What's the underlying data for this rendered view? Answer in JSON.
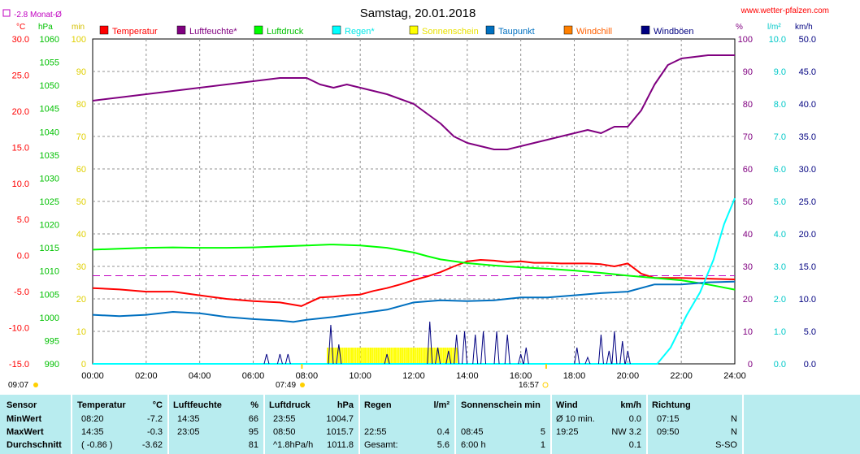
{
  "header": {
    "title": "Samstag, 20.01.2018",
    "site": "www.wetter-pfalzen.com",
    "month_avg": "-2.8 Monat-Ø"
  },
  "units": {
    "temp": "°C",
    "press": "hPa",
    "min": "min",
    "pct": "%",
    "rain": "l/m²",
    "wind": "km/h"
  },
  "legend": [
    {
      "label": "Temperatur",
      "color": "#ff0000"
    },
    {
      "label": "Luftfeuchte*",
      "color": "#800080"
    },
    {
      "label": "Luftdruck",
      "color": "#00ff00"
    },
    {
      "label": "Regen*",
      "color": "#00ffff"
    },
    {
      "label": "Sonnenschein",
      "color": "#ffff00"
    },
    {
      "label": "Taupunkt",
      "color": "#0070c0"
    },
    {
      "label": "Windchill",
      "color": "#ff8000"
    },
    {
      "label": "Windböen",
      "color": "#000080"
    }
  ],
  "axes": {
    "temp_ticks": [
      "30.0",
      "25.0",
      "20.0",
      "15.0",
      "10.0",
      "5.0",
      "0.0",
      "-5.0",
      "-10.0",
      "-15.0"
    ],
    "press_ticks": [
      "1060",
      "1055",
      "1050",
      "1045",
      "1040",
      "1035",
      "1030",
      "1025",
      "1020",
      "1015",
      "1010",
      "1005",
      "1000",
      "995",
      "990"
    ],
    "min_ticks": [
      "100",
      "90",
      "80",
      "70",
      "60",
      "50",
      "40",
      "30",
      "20",
      "10",
      "0"
    ],
    "pct_ticks": [
      "100",
      "90",
      "80",
      "70",
      "60",
      "50",
      "40",
      "30",
      "20",
      "10",
      "0"
    ],
    "rain_ticks": [
      "10.0",
      "9.0",
      "8.0",
      "7.0",
      "6.0",
      "5.0",
      "4.0",
      "3.0",
      "2.0",
      "1.0",
      "0.0"
    ],
    "wind_ticks": [
      "50.0",
      "45.0",
      "40.0",
      "35.0",
      "30.0",
      "25.0",
      "20.0",
      "15.0",
      "10.0",
      "5.0",
      "0.0"
    ],
    "time_ticks": [
      "00:00",
      "02:00",
      "04:00",
      "06:00",
      "08:00",
      "10:00",
      "12:00",
      "14:00",
      "16:00",
      "18:00",
      "20:00",
      "22:00",
      "24:00"
    ],
    "sunrise": "07:49",
    "sunset": "16:57",
    "moon": "09:07"
  },
  "chart_data": {
    "type": "line",
    "title": "Samstag, 20.01.2018",
    "x_range": [
      0,
      24
    ],
    "temp_range": [
      -15,
      30
    ],
    "press_range": [
      990,
      1060
    ],
    "pct_range": [
      0,
      100
    ],
    "rain_range": [
      0,
      10
    ],
    "month_avg_temp": -2.8,
    "series": [
      {
        "name": "Temperatur",
        "color": "#ff0000",
        "axis": "temp",
        "x": [
          0,
          1,
          2,
          3,
          4,
          5,
          6,
          7,
          7.8,
          8.5,
          9,
          9.5,
          10,
          10.5,
          11,
          11.5,
          12,
          12.5,
          13,
          13.5,
          14,
          14.5,
          15,
          15.5,
          16,
          16.5,
          17,
          17.5,
          18,
          18.5,
          19,
          19.5,
          20,
          20.5,
          21,
          22,
          23,
          24
        ],
        "y": [
          -4.5,
          -4.7,
          -5.0,
          -5.0,
          -5.5,
          -6.0,
          -6.3,
          -6.5,
          -7.0,
          -5.8,
          -5.7,
          -5.5,
          -5.4,
          -4.9,
          -4.5,
          -4.0,
          -3.4,
          -2.9,
          -2.3,
          -1.5,
          -0.8,
          -0.6,
          -0.7,
          -0.9,
          -0.8,
          -1.0,
          -1.0,
          -1.1,
          -1.1,
          -1.1,
          -1.2,
          -1.5,
          -1.1,
          -2.5,
          -3.1,
          -3.1,
          -3.2,
          -3.3
        ]
      },
      {
        "name": "Luftfeuchte*",
        "color": "#800080",
        "axis": "pct",
        "x": [
          0,
          1,
          2,
          3,
          4,
          5,
          6,
          7,
          8,
          8.5,
          9,
          9.5,
          10,
          11,
          12,
          13,
          13.5,
          14,
          14.5,
          15,
          15.5,
          16,
          16.5,
          17,
          17.5,
          18,
          18.5,
          19,
          19.5,
          20,
          20.5,
          21,
          21.5,
          22,
          23,
          24
        ],
        "y": [
          81,
          82,
          83,
          84,
          85,
          86,
          87,
          88,
          88,
          86,
          85,
          86,
          85,
          83,
          80,
          74,
          70,
          68,
          67,
          66,
          66,
          67,
          68,
          69,
          70,
          71,
          72,
          71,
          73,
          73,
          78,
          86,
          92,
          94,
          95,
          95
        ]
      },
      {
        "name": "Luftdruck",
        "color": "#00ff00",
        "axis": "press",
        "x": [
          0,
          1,
          2,
          3,
          4,
          5,
          6,
          7,
          8,
          8.85,
          9,
          10,
          11,
          12,
          12.5,
          13,
          14,
          15,
          16,
          17,
          18,
          19,
          20,
          21,
          22,
          23,
          24
        ],
        "y": [
          1014.6,
          1014.8,
          1015.0,
          1015.1,
          1015.0,
          1015.0,
          1015.1,
          1015.3,
          1015.5,
          1015.7,
          1015.7,
          1015.5,
          1015.0,
          1014.0,
          1013.2,
          1012.5,
          1011.7,
          1011.2,
          1010.8,
          1010.5,
          1010.1,
          1009.6,
          1009.0,
          1008.5,
          1008.0,
          1007.1,
          1006.0
        ]
      },
      {
        "name": "Taupunkt",
        "color": "#0070c0",
        "axis": "temp",
        "x": [
          0,
          1,
          2,
          3,
          4,
          5,
          6,
          7,
          7.5,
          8,
          9,
          10,
          11,
          12,
          13,
          14,
          15,
          16,
          17,
          18,
          19,
          20,
          21,
          22,
          23,
          24
        ],
        "y": [
          -8.2,
          -8.4,
          -8.2,
          -7.8,
          -8.0,
          -8.5,
          -8.8,
          -9.0,
          -9.2,
          -8.9,
          -8.5,
          -8.0,
          -7.5,
          -6.5,
          -6.2,
          -6.3,
          -6.2,
          -5.8,
          -5.8,
          -5.5,
          -5.2,
          -5.0,
          -4.0,
          -4.0,
          -3.7,
          -3.6
        ]
      },
      {
        "name": "Regen*",
        "color": "#00ffff",
        "axis": "rain",
        "x": [
          0,
          21.1,
          21.6,
          22.2,
          22.7,
          23.2,
          23.6,
          24
        ],
        "y": [
          0,
          0,
          0.5,
          1.5,
          2.2,
          3.2,
          4.3,
          5.1
        ]
      },
      {
        "name": "Windböen",
        "color": "#000080",
        "axis": "pct",
        "bars": [
          [
            6.5,
            3
          ],
          [
            7.0,
            3
          ],
          [
            7.3,
            3
          ],
          [
            8.9,
            12
          ],
          [
            9.2,
            6
          ],
          [
            11,
            3
          ],
          [
            12.6,
            13
          ],
          [
            12.9,
            5
          ],
          [
            13.3,
            4
          ],
          [
            13.6,
            9
          ],
          [
            13.9,
            10
          ],
          [
            14.3,
            9
          ],
          [
            14.6,
            10
          ],
          [
            15.1,
            10
          ],
          [
            15.5,
            9
          ],
          [
            16.0,
            3
          ],
          [
            16.2,
            5
          ],
          [
            18.1,
            5
          ],
          [
            18.5,
            2
          ],
          [
            19.0,
            9
          ],
          [
            19.3,
            4
          ],
          [
            19.5,
            10
          ],
          [
            19.8,
            7
          ],
          [
            20.0,
            4
          ]
        ]
      }
    ],
    "sunshine_span": [
      8.75,
      13.6
    ]
  },
  "stats": {
    "headers": {
      "sensor": "Sensor",
      "temp": "Temperatur",
      "temp_unit": "°C",
      "hum": "Luftfeuchte",
      "hum_unit": "%",
      "press": "Luftdruck",
      "press_unit": "hPa",
      "rain": "Regen",
      "rain_unit": "l/m²",
      "sun": "Sonnenschein min",
      "wind": "Wind",
      "wind_unit": "km/h",
      "dir": "Richtung"
    },
    "rows": [
      {
        "label": "MinWert",
        "temp_t": "08:20",
        "temp_v": "-7.2",
        "hum_t": "14:35",
        "hum_v": "66",
        "press_t": "23:55",
        "press_v": "1004.7",
        "rain_t": "",
        "rain_v": "",
        "sun_t": "",
        "sun_v": "",
        "wind_t": "Ø 10 min.",
        "wind_v": "0.0",
        "dir_t": "07:15",
        "dir_v": "N"
      },
      {
        "label": "MaxWert",
        "temp_t": "14:35",
        "temp_v": "-0.3",
        "hum_t": "23:05",
        "hum_v": "95",
        "press_t": "08:50",
        "press_v": "1015.7",
        "rain_t": "22:55",
        "rain_v": "0.4",
        "sun_t": "08:45",
        "sun_v": "5",
        "wind_t": "19:25",
        "wind_v": "NW 3.2",
        "dir_t": "09:50",
        "dir_v": "N"
      },
      {
        "label": "Durchschnitt",
        "temp_t": "( -0.86 )",
        "temp_v": "-3.62",
        "hum_t": "",
        "hum_v": "81",
        "press_t": "^1.8hPa/h",
        "press_v": "1011.8",
        "rain_t": "Gesamt:",
        "rain_v": "5.6",
        "sun_t": "6:00 h",
        "sun_v": "1",
        "wind_t": "",
        "wind_v": "0.1",
        "dir_t": "",
        "dir_v": "S-SO"
      }
    ]
  }
}
